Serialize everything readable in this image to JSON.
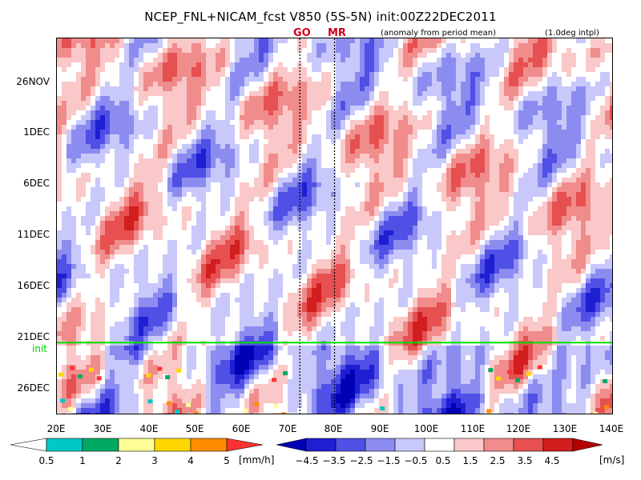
{
  "title": "NCEP_FNL+NICAM_fcst V850 (5S-5N) init:00Z22DEC2011",
  "subtitle_left": "(anomaly from period mean)",
  "subtitle_right": "(1.0deg intpl)",
  "markers": {
    "go": "GO",
    "mr": "MR"
  },
  "init_label": "init",
  "colors": {
    "precip": [
      "#ffffff",
      "#00c8c8",
      "#00aa64",
      "#ffff96",
      "#ffd700",
      "#ff8c00",
      "#ff3232"
    ],
    "wind": [
      "#0000b4",
      "#1e1ed2",
      "#5050e6",
      "#8c8cf0",
      "#c8c8fa",
      "#ffffff",
      "#fac8c8",
      "#f08c8c",
      "#e65050",
      "#d21e1e",
      "#b40000"
    ],
    "init_line": "#00dd00"
  },
  "chart_data": {
    "type": "heatmap",
    "title": "NCEP_FNL+NICAM_fcst V850 (5S-5N) init:00Z22DEC2011",
    "subtitle": "(anomaly from period mean)",
    "x_axis": {
      "range_deg_E": [
        20,
        140
      ],
      "tick_labels": [
        "20E",
        "30E",
        "40E",
        "50E",
        "60E",
        "70E",
        "80E",
        "90E",
        "100E",
        "110E",
        "120E",
        "130E",
        "140E"
      ]
    },
    "y_axis": {
      "time_range": [
        "2011-11-22",
        "2011-12-29"
      ],
      "tick_labels": [
        "26NOV",
        "1DEC",
        "6DEC",
        "11DEC",
        "16DEC",
        "21DEC",
        "26DEC"
      ],
      "orientation": "time increasing downward"
    },
    "init_time": "00Z22DEC2011",
    "vertical_lines_deg_E": [
      {
        "label": "GO",
        "lon": 72.5
      },
      {
        "label": "MR",
        "lon": 80
      }
    ],
    "precip_colorbar": {
      "levels": [
        "0.5",
        "1",
        "2",
        "3",
        "4",
        "5"
      ],
      "unit": "[mm/h]"
    },
    "wind_colorbar": {
      "levels": [
        "−4.5",
        "−3.5",
        "−2.5",
        "−1.5",
        "−0.5",
        "0.5",
        "1.5",
        "2.5",
        "3.5",
        "4.5"
      ],
      "unit": "[m/s]"
    }
  }
}
